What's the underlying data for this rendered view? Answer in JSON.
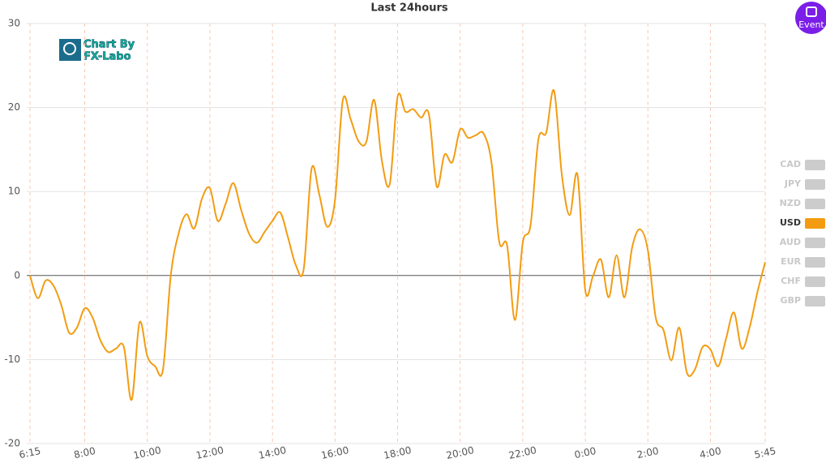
{
  "chart_data": {
    "type": "line",
    "title": "Last 24hours",
    "categories": [
      "6:15",
      null,
      null,
      null,
      null,
      null,
      null,
      "8:00",
      null,
      null,
      null,
      null,
      null,
      null,
      null,
      "10:00",
      null,
      null,
      null,
      null,
      null,
      null,
      null,
      "12:00",
      null,
      null,
      null,
      null,
      null,
      null,
      null,
      "14:00",
      null,
      null,
      null,
      null,
      null,
      null,
      null,
      "16:00",
      null,
      null,
      null,
      null,
      null,
      null,
      null,
      "18:00",
      null,
      null,
      null,
      null,
      null,
      null,
      null,
      "20:00",
      null,
      null,
      null,
      null,
      null,
      null,
      null,
      "22:00",
      null,
      null,
      null,
      null,
      null,
      null,
      null,
      "0:00",
      null,
      null,
      null,
      null,
      null,
      null,
      null,
      "2:00",
      null,
      null,
      null,
      null,
      null,
      null,
      null,
      "4:00",
      null,
      null,
      null,
      null,
      null,
      null,
      "5:45"
    ],
    "series": [
      {
        "name": "USD",
        "color": "#f39c12",
        "values": [
          0,
          -2.7,
          -0.6,
          -1.2,
          -3.5,
          -6.8,
          -6.2,
          -3.9,
          -5.0,
          -7.7,
          -9.1,
          -8.7,
          -8.5,
          -14.8,
          -5.6,
          -9.6,
          -10.8,
          -11.2,
          0,
          5.0,
          7.3,
          5.6,
          9.2,
          10.4,
          6.5,
          8.5,
          11,
          7.8,
          5.0,
          3.9,
          5.2,
          6.5,
          7.5,
          4.5,
          1.2,
          0.8,
          12.7,
          9.6,
          5.8,
          9.0,
          20.9,
          18.6,
          16,
          15.9,
          20.9,
          13.6,
          10.9,
          21.3,
          19.5,
          19.8,
          18.8,
          19.2,
          10.6,
          14.4,
          13.5,
          17.4,
          16.4,
          16.7,
          16.9,
          13.5,
          4.0,
          3.6,
          -5.3,
          3.9,
          6.0,
          16.2,
          17,
          22,
          12,
          7.2,
          12,
          -1.8,
          0,
          1.9,
          -2.6,
          2.4,
          -2.6,
          3.4,
          5.5,
          3,
          -5,
          -6.5,
          -10.1,
          -6.2,
          -11.6,
          -11.2,
          -8.5,
          -8.8,
          -10.8,
          -7.5,
          -4.4,
          -8.7,
          -6.2,
          -2.0,
          1.6
        ]
      }
    ],
    "legend": [
      "CAD",
      "JPY",
      "NZD",
      "USD",
      "AUD",
      "EUR",
      "CHF",
      "GBP"
    ],
    "legend_inactive_color": "#cccccc",
    "ylim": [
      -20,
      30
    ],
    "yticks": [
      -20,
      -10,
      0,
      10,
      20,
      30
    ],
    "grid": true,
    "logo": [
      "Chart By",
      "FX-Labo"
    ],
    "button": "Event"
  }
}
